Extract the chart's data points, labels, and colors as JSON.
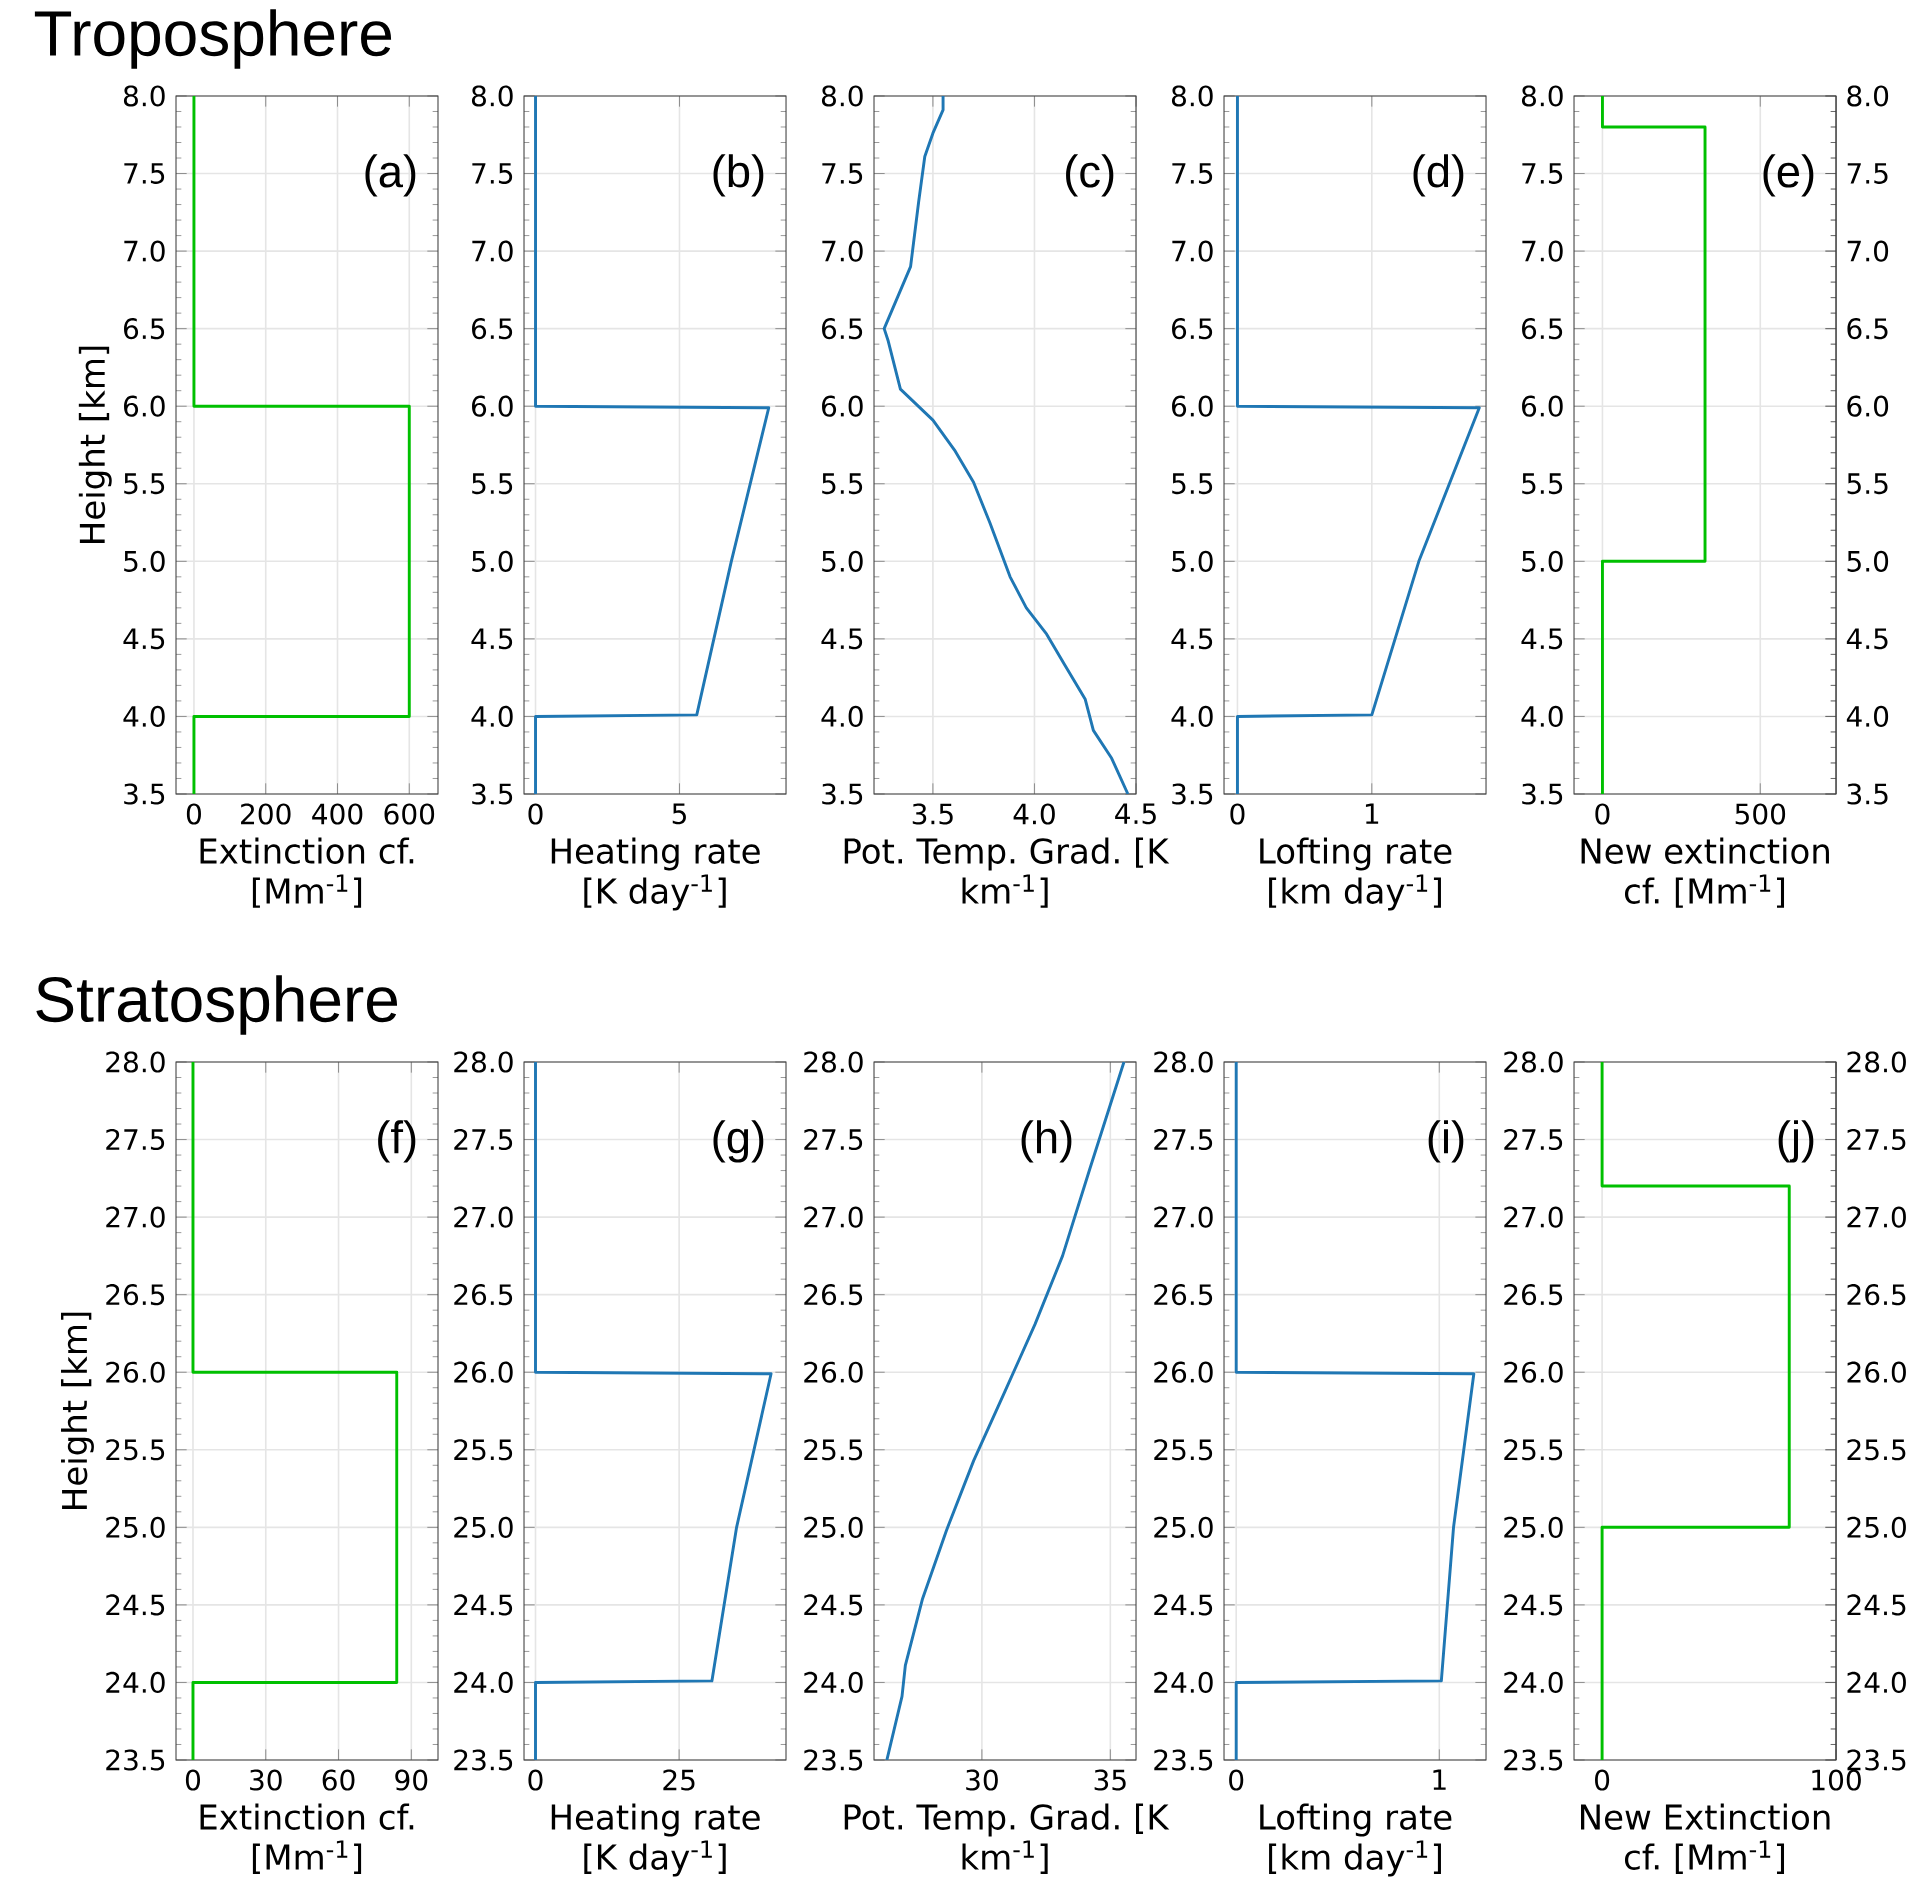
{
  "chart_data": [
    {
      "type": "line",
      "title": "Troposphere",
      "xlabel": "Extinction cf. [Mm$^{-1}$]",
      "ylabel": "Height [km]",
      "annotations": [
        "(a)"
      ],
      "color": "#00c000",
      "grid": true,
      "x": [
        0,
        0,
        600,
        600,
        0,
        0
      ],
      "values": [
        3.5,
        4.0,
        4.0,
        6.0,
        6.0,
        8.0
      ],
      "xlim": [
        -50,
        680
      ],
      "xticks": [
        0,
        200,
        400,
        600
      ],
      "ylim": [
        3.5,
        8.0
      ],
      "yticks": [
        3.5,
        {
          "value": 4,
          "label": "4.0"
        },
        4.5,
        {
          "value": 5,
          "label": "5.0"
        },
        5.5,
        {
          "value": 6,
          "label": "6.0"
        },
        6.5,
        {
          "value": 7,
          "label": "7.0"
        },
        7.5,
        {
          "value": 8,
          "label": "8.0"
        }
      ]
    },
    {
      "type": "line",
      "xlabel": "Heating rate [K day$^{-1}$]",
      "annotations": [
        "(b)"
      ],
      "color": "#1f77b4",
      "grid": true,
      "x": [
        0,
        0,
        5.6,
        6.8,
        8.1,
        0,
        0
      ],
      "values": [
        3.5,
        4.0,
        4.01,
        5.0,
        5.99,
        6.0,
        8.0
      ],
      "xlim": [
        -0.4,
        8.7
      ],
      "xticks": [
        0,
        5
      ],
      "ylim": [
        3.5,
        8.0
      ],
      "yticks": [
        3.5,
        {
          "value": 4,
          "label": "4.0"
        },
        4.5,
        {
          "value": 5,
          "label": "5.0"
        },
        5.5,
        {
          "value": 6,
          "label": "6.0"
        },
        6.5,
        {
          "value": 7,
          "label": "7.0"
        },
        7.5,
        {
          "value": 8,
          "label": "8.0"
        }
      ]
    },
    {
      "type": "line",
      "xlabel": "Pot. Temp. Grad. [K km$^{-1}$]",
      "annotations": [
        "(c)"
      ],
      "color": "#1f77b4",
      "grid": true,
      "x": [
        3.55,
        3.55,
        3.5,
        3.46,
        3.43,
        3.39,
        3.26,
        3.28,
        3.34,
        3.5,
        3.61,
        3.7,
        3.78,
        3.88,
        3.96,
        4.06,
        4.15,
        4.25,
        4.29,
        4.38,
        4.46
      ],
      "values": [
        8.0,
        7.91,
        7.76,
        7.61,
        7.32,
        6.9,
        6.5,
        6.42,
        6.11,
        5.91,
        5.71,
        5.51,
        5.25,
        4.9,
        4.7,
        4.53,
        4.33,
        4.11,
        3.91,
        3.73,
        3.5
      ],
      "xlim": [
        3.21,
        4.5
      ],
      "xticks": [
        3.5,
        {
          "value": 4,
          "label": "4.0"
        },
        4.5
      ],
      "ylim": [
        3.5,
        8.0
      ],
      "yticks": [
        3.5,
        {
          "value": 4,
          "label": "4.0"
        },
        4.5,
        {
          "value": 5,
          "label": "5.0"
        },
        5.5,
        {
          "value": 6,
          "label": "6.0"
        },
        6.5,
        {
          "value": 7,
          "label": "7.0"
        },
        7.5,
        {
          "value": 8,
          "label": "8.0"
        }
      ]
    },
    {
      "type": "line",
      "xlabel": "Lofting rate [km day$^{-1}$]",
      "annotations": [
        "(d)"
      ],
      "color": "#1f77b4",
      "grid": true,
      "x": [
        0,
        0,
        1.0,
        1.35,
        1.8,
        0,
        0
      ],
      "values": [
        3.5,
        4.0,
        4.01,
        5.0,
        5.99,
        6.0,
        8.0
      ],
      "xlim": [
        -0.1,
        1.85
      ],
      "xticks": [
        0,
        1
      ],
      "ylim": [
        3.5,
        8.0
      ],
      "yticks": [
        3.5,
        {
          "value": 4,
          "label": "4.0"
        },
        4.5,
        {
          "value": 5,
          "label": "5.0"
        },
        5.5,
        {
          "value": 6,
          "label": "6.0"
        },
        6.5,
        {
          "value": 7,
          "label": "7.0"
        },
        7.5,
        {
          "value": 8,
          "label": "8.0"
        }
      ]
    },
    {
      "type": "line",
      "xlabel": "New extinction cf. [Mm$^{-1}$]",
      "annotations": [
        "(e)"
      ],
      "color": "#00c000",
      "grid": true,
      "x": [
        0,
        0,
        325,
        325,
        0,
        0
      ],
      "values": [
        3.5,
        5.0,
        5.0,
        7.8,
        7.8,
        8.0
      ],
      "xlim": [
        -90,
        740
      ],
      "xticks": [
        0,
        500
      ],
      "ylim": [
        3.5,
        8.0
      ],
      "yticks": [
        3.5,
        {
          "value": 4,
          "label": "4.0"
        },
        4.5,
        {
          "value": 5,
          "label": "5.0"
        },
        5.5,
        {
          "value": 6,
          "label": "6.0"
        },
        6.5,
        {
          "value": 7,
          "label": "7.0"
        },
        7.5,
        {
          "value": 8,
          "label": "8.0"
        }
      ],
      "y2lim": [
        3.5,
        8.0
      ],
      "y2ticks": [
        3.5,
        {
          "value": 4,
          "label": "4.0"
        },
        4.5,
        {
          "value": 5,
          "label": "5.0"
        },
        5.5,
        {
          "value": 6,
          "label": "6.0"
        },
        6.5,
        {
          "value": 7,
          "label": "7.0"
        },
        7.5,
        {
          "value": 8,
          "label": "8.0"
        }
      ]
    },
    {
      "type": "line",
      "title": "Stratosphere",
      "xlabel": "Extinction cf. [Mm$^{-1}$]",
      "ylabel": "Height [km]",
      "annotations": [
        "(f)"
      ],
      "color": "#00c000",
      "grid": true,
      "x": [
        0,
        0,
        84,
        84,
        0,
        0
      ],
      "values": [
        23.5,
        24.0,
        24.0,
        26.0,
        26.0,
        28.0
      ],
      "xlim": [
        -7,
        101
      ],
      "xticks": [
        0,
        30,
        60,
        90
      ],
      "ylim": [
        23.5,
        28.0
      ],
      "yticks": [
        23.5,
        {
          "value": 24,
          "label": "24.0"
        },
        24.5,
        {
          "value": 25,
          "label": "25.0"
        },
        25.5,
        {
          "value": 26,
          "label": "26.0"
        },
        26.5,
        {
          "value": 27,
          "label": "27.0"
        },
        27.5,
        {
          "value": 28,
          "label": "28.0"
        }
      ]
    },
    {
      "type": "line",
      "xlabel": "Heating rate [K day$^{-1}$]",
      "annotations": [
        "(g)"
      ],
      "color": "#1f77b4",
      "grid": true,
      "x": [
        0,
        0,
        30.7,
        35,
        41,
        0,
        0
      ],
      "values": [
        23.5,
        24.0,
        24.01,
        25.0,
        25.99,
        26.0,
        28.0
      ],
      "xlim": [
        -2,
        43.6
      ],
      "xticks": [
        0,
        25
      ],
      "ylim": [
        23.5,
        28.0
      ],
      "yticks": [
        23.5,
        {
          "value": 24,
          "label": "24.0"
        },
        24.5,
        {
          "value": 25,
          "label": "25.0"
        },
        25.5,
        {
          "value": 26,
          "label": "26.0"
        },
        26.5,
        {
          "value": 27,
          "label": "27.0"
        },
        27.5,
        {
          "value": 28,
          "label": "28.0"
        }
      ]
    },
    {
      "type": "line",
      "xlabel": "Pot. Temp. Grad. [K km$^{-1}$]",
      "annotations": [
        "(h)"
      ],
      "color": "#1f77b4",
      "grid": true,
      "x": [
        35.53,
        34.2,
        33.14,
        32.07,
        30.88,
        29.68,
        28.62,
        27.69,
        27.02,
        26.89,
        26.3
      ],
      "values": [
        28.0,
        27.31,
        26.75,
        26.31,
        25.87,
        25.43,
        24.98,
        24.54,
        24.11,
        23.91,
        23.5
      ],
      "xlim": [
        25.8,
        36
      ],
      "xticks": [
        30,
        35
      ],
      "ylim": [
        23.5,
        28.0
      ],
      "yticks": [
        23.5,
        {
          "value": 24,
          "label": "24.0"
        },
        24.5,
        {
          "value": 25,
          "label": "25.0"
        },
        25.5,
        {
          "value": 26,
          "label": "26.0"
        },
        26.5,
        {
          "value": 27,
          "label": "27.0"
        },
        27.5,
        {
          "value": 28,
          "label": "28.0"
        }
      ]
    },
    {
      "type": "line",
      "xlabel": "Lofting rate [km day$^{-1}$]",
      "annotations": [
        "(i)"
      ],
      "color": "#1f77b4",
      "grid": true,
      "x": [
        0,
        0,
        1.01,
        1.07,
        1.17,
        0,
        0
      ],
      "values": [
        23.5,
        24.0,
        24.01,
        25.0,
        25.99,
        26.0,
        28.0
      ],
      "xlim": [
        -0.06,
        1.23
      ],
      "xticks": [
        0,
        1
      ],
      "ylim": [
        23.5,
        28.0
      ],
      "yticks": [
        23.5,
        {
          "value": 24,
          "label": "24.0"
        },
        24.5,
        {
          "value": 25,
          "label": "25.0"
        },
        25.5,
        {
          "value": 26,
          "label": "26.0"
        },
        26.5,
        {
          "value": 27,
          "label": "27.0"
        },
        27.5,
        {
          "value": 28,
          "label": "28.0"
        }
      ]
    },
    {
      "type": "line",
      "xlabel": "New Extinction cf. [Mm$^{-1}$]",
      "annotations": [
        "(j)"
      ],
      "color": "#00c000",
      "grid": true,
      "x": [
        0,
        0,
        80,
        80,
        0,
        0
      ],
      "values": [
        23.5,
        25.0,
        25.0,
        27.2,
        27.2,
        28.0
      ],
      "xlim": [
        -12,
        100
      ],
      "xticks": [
        0,
        100
      ],
      "ylim": [
        23.5,
        28.0
      ],
      "yticks": [
        23.5,
        {
          "value": 24,
          "label": "24.0"
        },
        24.5,
        {
          "value": 25,
          "label": "25.0"
        },
        25.5,
        {
          "value": 26,
          "label": "26.0"
        },
        26.5,
        {
          "value": 27,
          "label": "27.0"
        },
        27.5,
        {
          "value": 28,
          "label": "28.0"
        }
      ],
      "y2lim": [
        23.5,
        28.0
      ],
      "y2ticks": [
        23.5,
        {
          "value": 24,
          "label": "24.0"
        },
        24.5,
        {
          "value": 25,
          "label": "25.0"
        },
        25.5,
        {
          "value": 26,
          "label": "26.0"
        },
        26.5,
        {
          "value": 27,
          "label": "27.0"
        },
        27.5,
        {
          "value": 28,
          "label": "28.0"
        }
      ]
    }
  ]
}
